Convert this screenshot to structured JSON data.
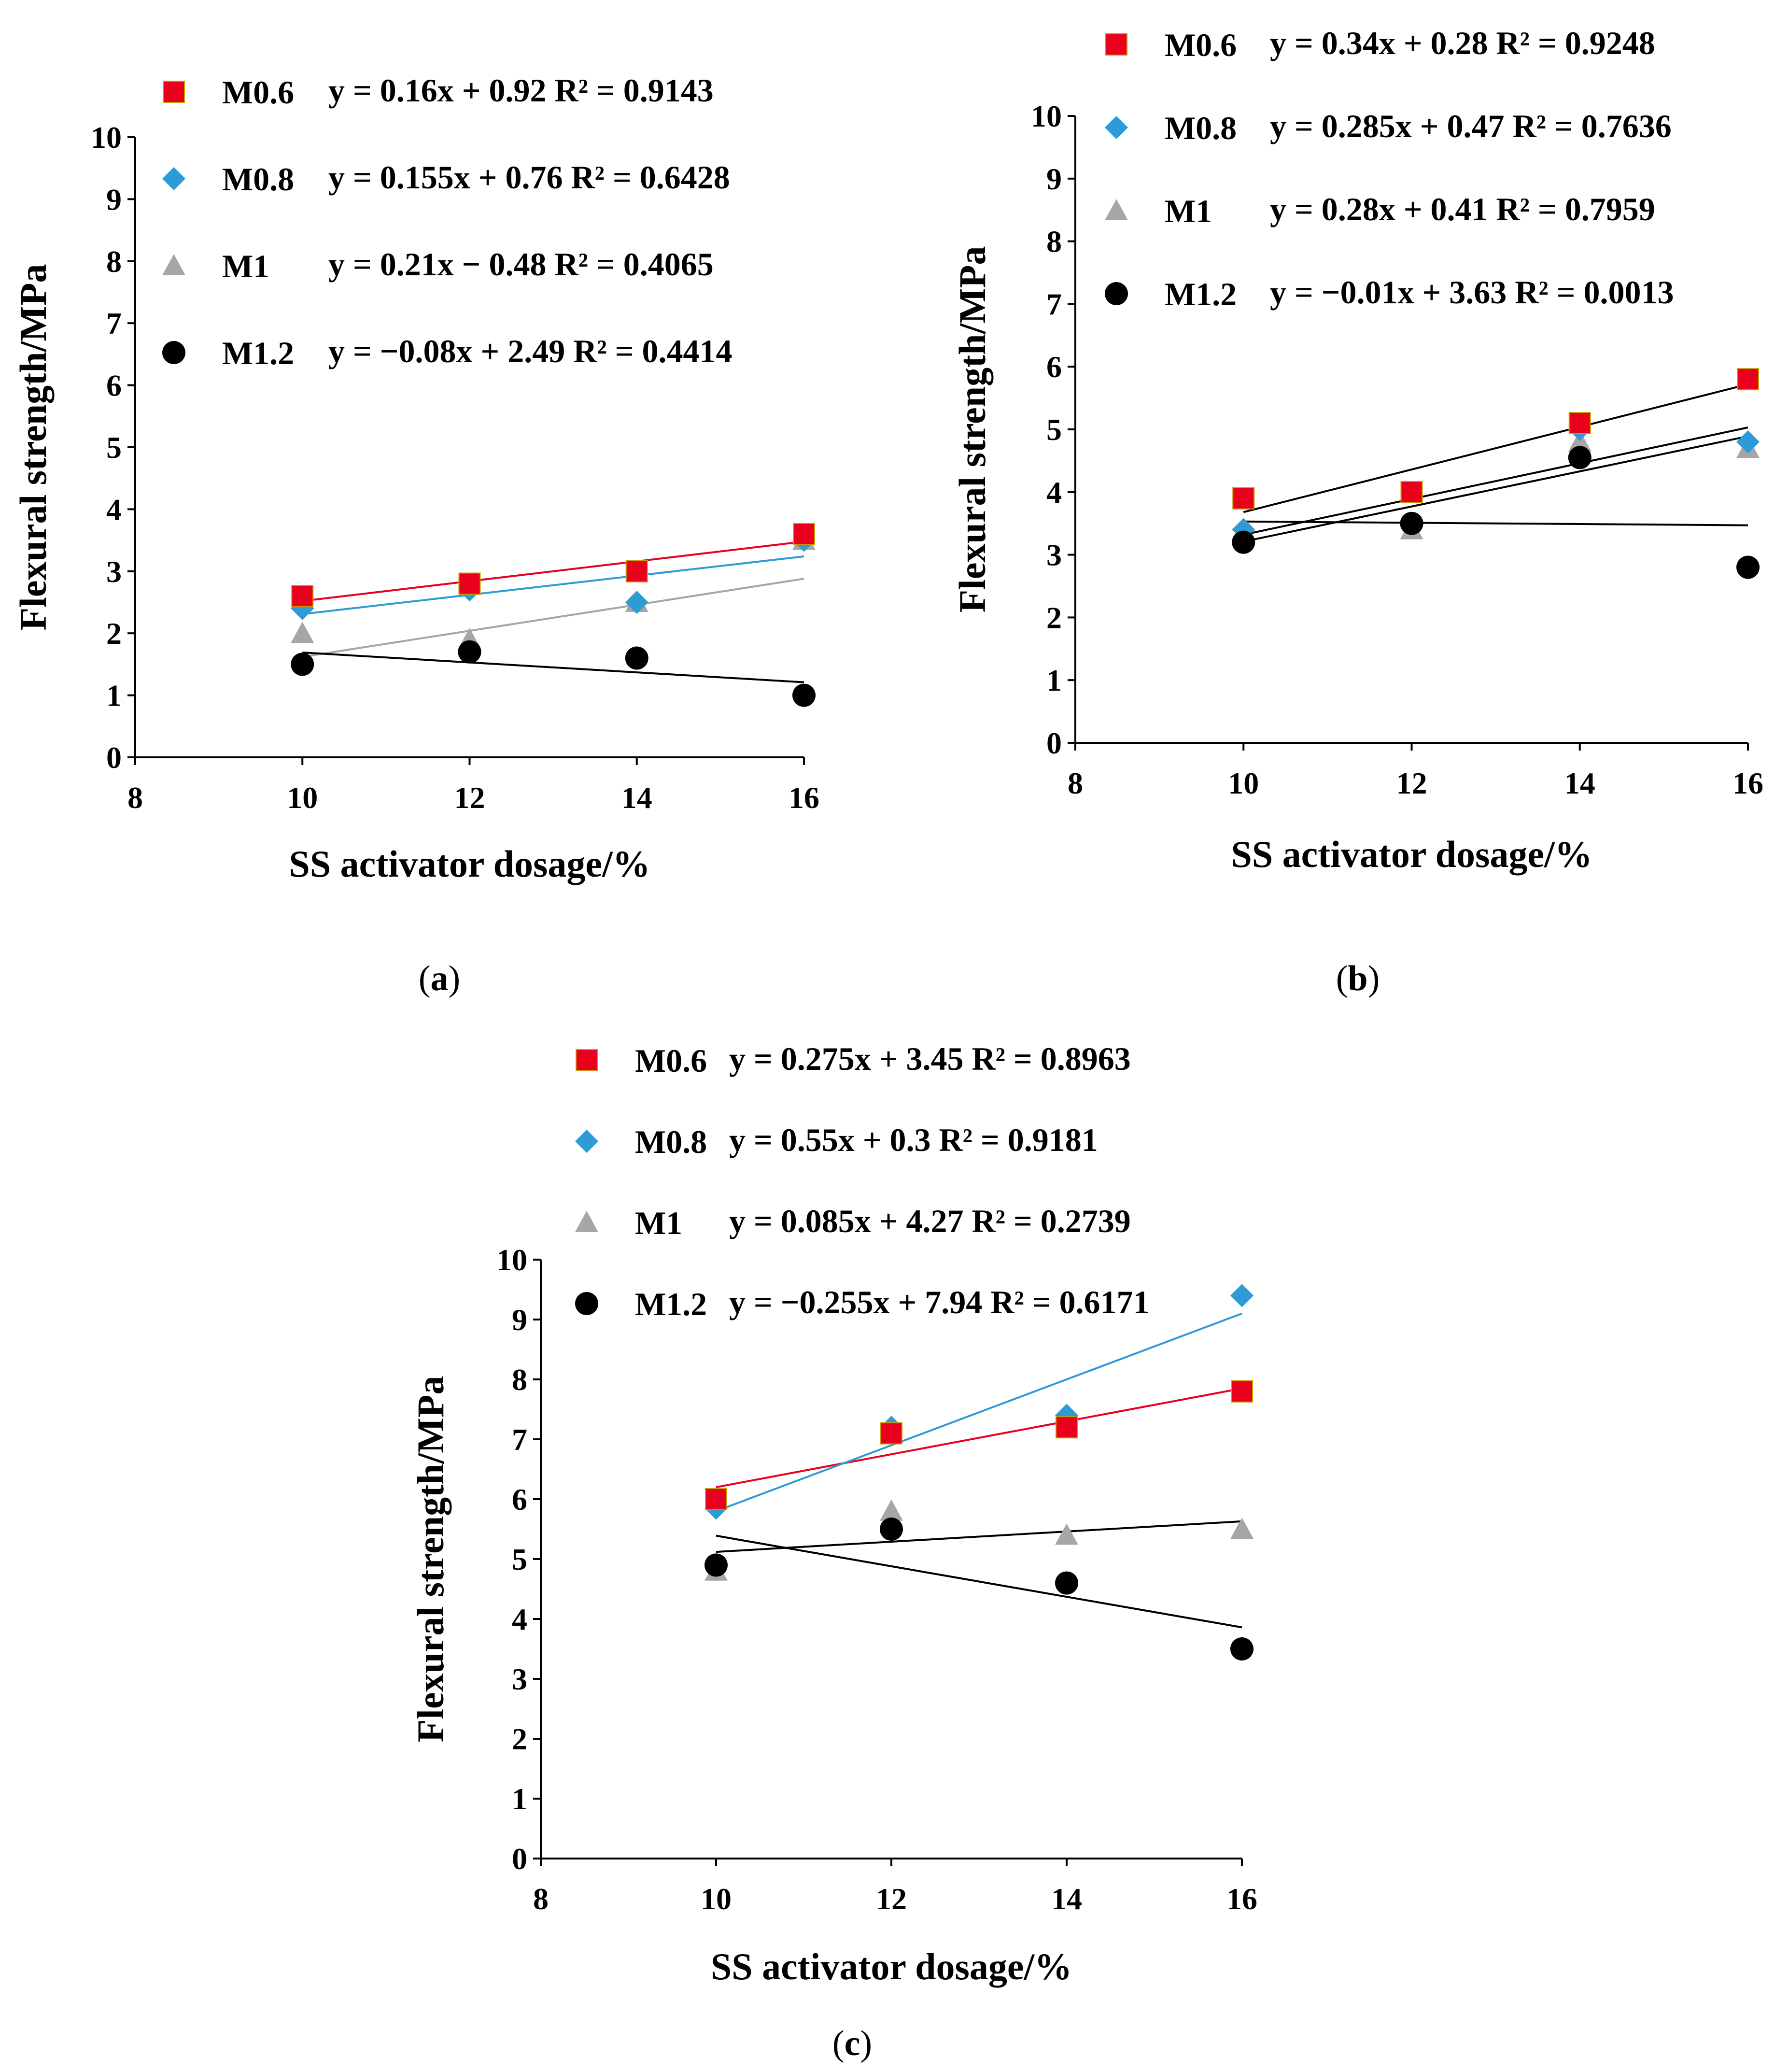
{
  "chart_data": [
    {
      "type": "scatter",
      "panel_label": "a",
      "xlabel": "SS activator dosage/%",
      "ylabel": "Flexural strength/MPa",
      "xlim": [
        8,
        16
      ],
      "ylim": [
        0,
        10
      ],
      "xticks": [
        8,
        10,
        12,
        14,
        16
      ],
      "yticks": [
        0,
        1,
        2,
        3,
        4,
        5,
        6,
        7,
        8,
        9,
        10
      ],
      "series": [
        {
          "name": "M0.6",
          "marker": "square",
          "color": "#e8001c",
          "line_color": "#e8001c",
          "x": [
            10,
            12,
            14,
            16
          ],
          "values": [
            2.6,
            2.8,
            3.0,
            3.6
          ],
          "fit": {
            "slope": 0.16,
            "intercept": 0.92
          },
          "equation": "y = 0.16x + 0.92 R² = 0.9143"
        },
        {
          "name": "M0.8",
          "marker": "diamond",
          "color": "#2e9bd6",
          "line_color": "#2e9bd6",
          "x": [
            10,
            12,
            14,
            16
          ],
          "values": [
            2.4,
            2.7,
            2.5,
            3.5
          ],
          "fit": {
            "slope": 0.155,
            "intercept": 0.76
          },
          "equation": "y = 0.155x + 0.76 R² = 0.6428"
        },
        {
          "name": "M1",
          "marker": "triangle",
          "color": "#a6a6a6",
          "line_color": "#a6a6a6",
          "x": [
            10,
            12,
            14,
            16
          ],
          "values": [
            2.0,
            1.9,
            2.5,
            3.5
          ],
          "fit": {
            "slope": 0.21,
            "intercept": -0.48
          },
          "equation": "y = 0.21x − 0.48 R² = 0.4065"
        },
        {
          "name": "M1.2",
          "marker": "circle",
          "color": "#000000",
          "line_color": "#000000",
          "x": [
            10,
            12,
            14,
            16
          ],
          "values": [
            1.5,
            1.7,
            1.6,
            1.0
          ],
          "fit": {
            "slope": -0.08,
            "intercept": 2.49
          },
          "equation": "y = −0.08x + 2.49 R² = 0.4414"
        }
      ]
    },
    {
      "type": "scatter",
      "panel_label": "b",
      "xlabel": "SS activator dosage/%",
      "ylabel": "Flexural strength/MPa",
      "xlim": [
        8,
        16
      ],
      "ylim": [
        0,
        10
      ],
      "xticks": [
        8,
        10,
        12,
        14,
        16
      ],
      "yticks": [
        0,
        1,
        2,
        3,
        4,
        5,
        6,
        7,
        8,
        9,
        10
      ],
      "series": [
        {
          "name": "M0.6",
          "marker": "square",
          "color": "#e8001c",
          "line_color": "#000000",
          "x": [
            10,
            12,
            14,
            16
          ],
          "values": [
            3.9,
            4.0,
            5.1,
            5.8
          ],
          "fit": {
            "slope": 0.34,
            "intercept": 0.28
          },
          "equation": "y = 0.34x + 0.28 R² = 0.9248"
        },
        {
          "name": "M0.8",
          "marker": "diamond",
          "color": "#2e9bd6",
          "line_color": "#000000",
          "x": [
            10,
            12,
            14,
            16
          ],
          "values": [
            3.4,
            3.5,
            5.0,
            4.8
          ],
          "fit": {
            "slope": 0.285,
            "intercept": 0.47
          },
          "equation": "y = 0.285x + 0.47 R² = 0.7636"
        },
        {
          "name": "M1",
          "marker": "triangle",
          "color": "#a6a6a6",
          "line_color": "#000000",
          "x": [
            10,
            12,
            14,
            16
          ],
          "values": [
            3.3,
            3.4,
            4.8,
            4.7
          ],
          "fit": {
            "slope": 0.28,
            "intercept": 0.41
          },
          "equation": "y = 0.28x + 0.41 R² = 0.7959"
        },
        {
          "name": "M1.2",
          "marker": "circle",
          "color": "#000000",
          "line_color": "#000000",
          "x": [
            10,
            12,
            14,
            16
          ],
          "values": [
            3.2,
            3.5,
            4.55,
            2.8
          ],
          "fit": {
            "slope": -0.01,
            "intercept": 3.63
          },
          "equation": "y = −0.01x + 3.63 R² = 0.0013"
        }
      ]
    },
    {
      "type": "scatter",
      "panel_label": "c",
      "xlabel": "SS activator dosage/%",
      "ylabel": "Flexural strength/MPa",
      "xlim": [
        8,
        16
      ],
      "ylim": [
        0,
        10
      ],
      "xticks": [
        8,
        10,
        12,
        14,
        16
      ],
      "yticks": [
        0,
        1,
        2,
        3,
        4,
        5,
        6,
        7,
        8,
        9,
        10
      ],
      "series": [
        {
          "name": "M0.6",
          "marker": "square",
          "color": "#e8001c",
          "line_color": "#e8001c",
          "x": [
            10,
            12,
            14,
            16
          ],
          "values": [
            6.0,
            7.1,
            7.2,
            7.8
          ],
          "fit": {
            "slope": 0.275,
            "intercept": 3.45
          },
          "equation": "y = 0.275x + 3.45 R² = 0.8963"
        },
        {
          "name": "M0.8",
          "marker": "diamond",
          "color": "#2e9bd6",
          "line_color": "#2e9bd6",
          "x": [
            10,
            12,
            14,
            16
          ],
          "values": [
            5.85,
            7.2,
            7.4,
            9.4
          ],
          "fit": {
            "slope": 0.55,
            "intercept": 0.3
          },
          "equation": "y = 0.55x + 0.3 R² = 0.9181"
        },
        {
          "name": "M1",
          "marker": "triangle",
          "color": "#a6a6a6",
          "line_color": "#000000",
          "x": [
            10,
            12,
            14,
            16
          ],
          "values": [
            4.8,
            5.8,
            5.4,
            5.5
          ],
          "fit": {
            "slope": 0.085,
            "intercept": 4.27
          },
          "equation": "y = 0.085x + 4.27 R² = 0.2739"
        },
        {
          "name": "M1.2",
          "marker": "circle",
          "color": "#000000",
          "line_color": "#000000",
          "x": [
            10,
            12,
            14,
            16
          ],
          "values": [
            4.9,
            5.5,
            4.6,
            3.5
          ],
          "fit": {
            "slope": -0.255,
            "intercept": 7.94
          },
          "equation": "y = −0.255x + 7.94 R² = 0.6171"
        }
      ]
    }
  ]
}
